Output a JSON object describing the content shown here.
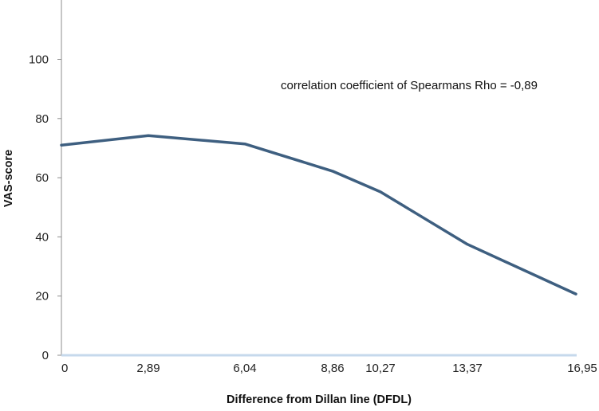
{
  "chart_data": {
    "type": "line",
    "x_labels": [
      "0",
      "2,89",
      "6,04",
      "8,86",
      "10,27",
      "13,37",
      "16,95"
    ],
    "x": [
      0,
      2.89,
      6.04,
      8.86,
      10.27,
      13.37,
      16.95
    ],
    "series": [
      {
        "values": [
          71,
          74.2,
          71.4,
          62.2,
          55.2,
          37.5,
          20.7
        ]
      }
    ],
    "xlabel": "Difference from Dillan line (DFDL)",
    "ylabel": "VAS-score",
    "ylim": [
      0,
      120
    ],
    "yticks": [
      0,
      20,
      40,
      60,
      80,
      100
    ],
    "annotation": "correlation coefficient of Spearmans Rho = -0,89",
    "grid": false,
    "colors": {
      "line": "#3e5f80",
      "x_axis": "#c6d9ec",
      "y_axis": "#8c8c8c"
    }
  }
}
